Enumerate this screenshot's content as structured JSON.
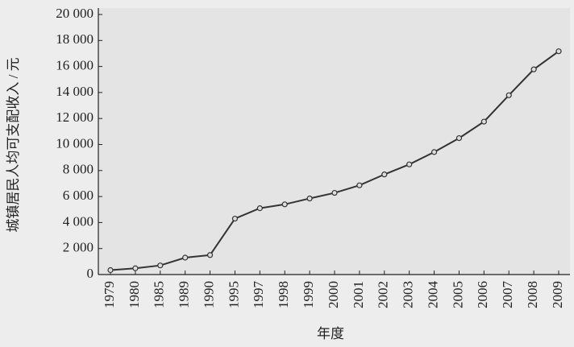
{
  "chart_data": {
    "type": "line",
    "x_label": "年度",
    "y_label": "城镇居民人均可支配收入 / 元",
    "categories": [
      "1979",
      "1980",
      "1985",
      "1989",
      "1990",
      "1995",
      "1997",
      "1998",
      "1999",
      "2000",
      "2001",
      "2002",
      "2003",
      "2004",
      "2005",
      "2006",
      "2007",
      "2008",
      "2009"
    ],
    "series": [
      {
        "color": "#333333",
        "values": [
          340,
          480,
          700,
          1300,
          1500,
          4300,
          5100,
          5400,
          5850,
          6280,
          6860,
          7700,
          8470,
          9420,
          10490,
          11760,
          13790,
          15780,
          17170
        ]
      }
    ],
    "ylim": [
      0,
      20000
    ],
    "yticks": [
      0,
      {
        "value": 2000,
        "label": "2 000"
      },
      {
        "value": 4000,
        "label": "4 000"
      },
      {
        "value": 6000,
        "label": "6 000"
      },
      {
        "value": 8000,
        "label": "8 000"
      },
      {
        "value": 10000,
        "label": "10 000"
      },
      {
        "value": 12000,
        "label": "12 000"
      },
      {
        "value": 14000,
        "label": "14 000"
      },
      {
        "value": 16000,
        "label": "16 000"
      },
      {
        "value": 18000,
        "label": "18 000"
      },
      {
        "value": 20000,
        "label": "20 000"
      }
    ]
  }
}
